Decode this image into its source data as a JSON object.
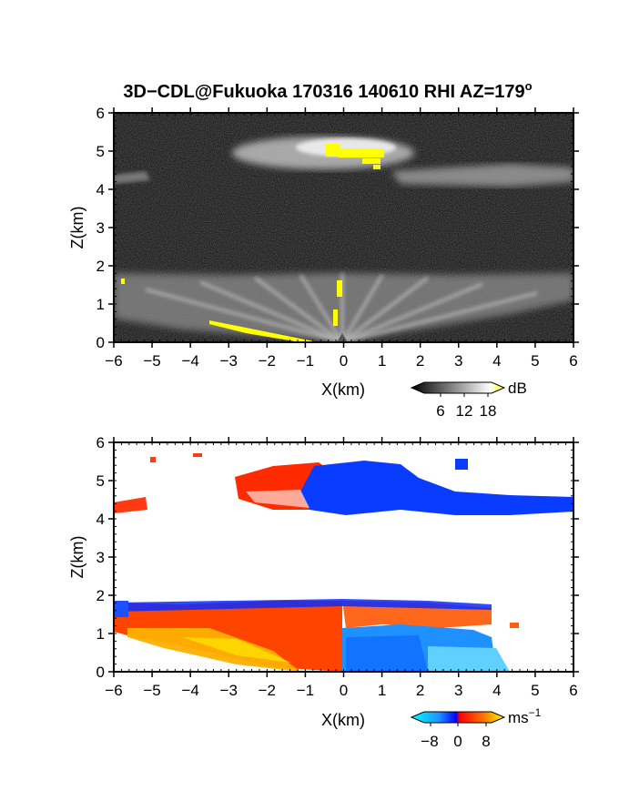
{
  "chart_data": [
    {
      "type": "heatmap",
      "title": "3D−CDL@Fukuoka 170316 140610 RHI AZ=179",
      "title_superscript": "o",
      "xlabel": "X(km)",
      "ylabel": "Z(km)",
      "xlim": [
        -6,
        6
      ],
      "ylim": [
        0,
        6
      ],
      "xticks": [
        "−6",
        "−5",
        "−4",
        "−3",
        "−2",
        "−1",
        "0",
        "1",
        "2",
        "3",
        "4",
        "5",
        "6"
      ],
      "yticks": [
        "0",
        "1",
        "2",
        "3",
        "4",
        "5",
        "6"
      ],
      "colorbar": {
        "unit": "dB",
        "ticks": [
          "6",
          "12",
          "18"
        ],
        "range": [
          0,
          20
        ],
        "colors": [
          "#000000",
          "#ffffff",
          "#ffff00"
        ]
      }
    },
    {
      "type": "heatmap",
      "title": "",
      "xlabel": "X(km)",
      "ylabel": "Z(km)",
      "xlim": [
        -6,
        6
      ],
      "ylim": [
        0,
        6
      ],
      "xticks": [
        "−6",
        "−5",
        "−4",
        "−3",
        "−2",
        "−1",
        "0",
        "1",
        "2",
        "3",
        "4",
        "5",
        "6"
      ],
      "yticks": [
        "0",
        "1",
        "2",
        "3",
        "4",
        "5",
        "6"
      ],
      "colorbar": {
        "unit": "ms",
        "unit_superscript": "−1",
        "ticks": [
          "−8",
          "0",
          "8"
        ],
        "range": [
          -10,
          10
        ],
        "colors": [
          "#00ffff",
          "#1e90ff",
          "#0000ff",
          "#ff0000",
          "#ff8000",
          "#ffff00"
        ]
      }
    }
  ]
}
